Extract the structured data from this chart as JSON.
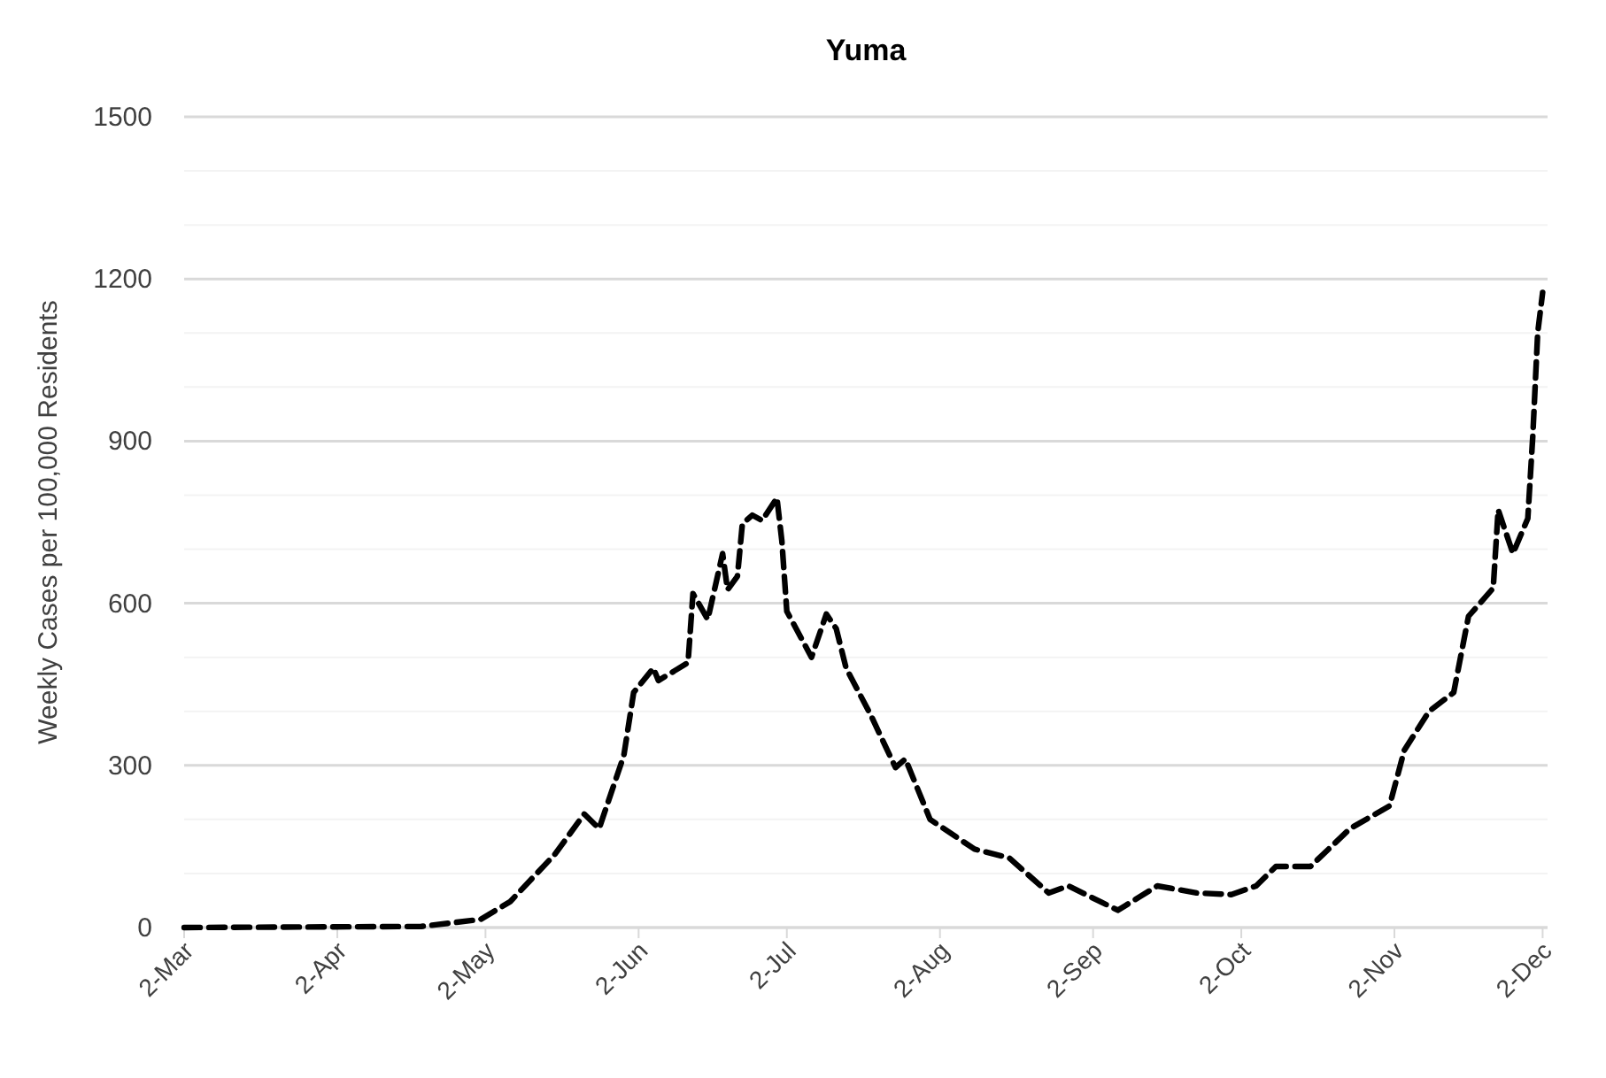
{
  "chart_data": {
    "type": "line",
    "title": "Yuma",
    "ylabel": "Weekly Cases per 100,000 Residents",
    "x": [
      "--03-02",
      "--04-19",
      "--05-01",
      "--05-07",
      "--05-16",
      "--05-22",
      "--05-25",
      "--05-30",
      "--06-01",
      "--06-05",
      "--06-06",
      "--06-12",
      "--06-13",
      "--06-16",
      "--06-19",
      "--06-20",
      "--06-22",
      "--06-23",
      "--06-25",
      "--06-27",
      "--06-30",
      "--07-01",
      "--07-02",
      "--07-07",
      "--07-10",
      "--07-12",
      "--07-14",
      "--07-19",
      "--07-24",
      "--07-26",
      "--07-31",
      "--08-09",
      "--08-16",
      "--08-24",
      "--08-28",
      "--09-07",
      "--09-15",
      "--09-23",
      "--09-30",
      "--10-05",
      "--10-09",
      "--10-16",
      "--10-24",
      "--11-01",
      "--11-04",
      "--11-09",
      "--11-14",
      "--11-17",
      "--11-22",
      "--11-23",
      "--11-26",
      "--11-29",
      "--11-30",
      "--12-01",
      "--12-02"
    ],
    "series": [
      {
        "color": "#000000",
        "line_style": "dashed",
        "values": [
          0,
          2,
          15,
          48,
          135,
          210,
          183,
          318,
          435,
          480,
          457,
          490,
          618,
          570,
          692,
          625,
          650,
          747,
          763,
          753,
          795,
          715,
          585,
          500,
          580,
          553,
          480,
          393,
          296,
          312,
          200,
          145,
          129,
          64,
          77,
          32,
          77,
          64,
          61,
          77,
          113,
          113,
          183,
          225,
          328,
          400,
          435,
          576,
          628,
          773,
          692,
          757,
          908,
          1100,
          1175
        ]
      }
    ],
    "xlim": [
      "--03-02",
      "--12-03"
    ],
    "xticks": [
      {
        "value": "--03-02",
        "label": "2-Mar"
      },
      {
        "value": "--04-02",
        "label": "2-Apr"
      },
      {
        "value": "--05-02",
        "label": "2-May"
      },
      {
        "value": "--06-02",
        "label": "2-Jun"
      },
      {
        "value": "--07-02",
        "label": "2-Jul"
      },
      {
        "value": "--08-02",
        "label": "2-Aug"
      },
      {
        "value": "--09-02",
        "label": "2-Sep"
      },
      {
        "value": "--10-02",
        "label": "2-Oct"
      },
      {
        "value": "--11-02",
        "label": "2-Nov"
      },
      {
        "value": "--12-02",
        "label": "2-Dec"
      }
    ],
    "ylim": [
      0,
      1500
    ],
    "yticks": [
      0,
      {
        "value": 100,
        "label": null
      },
      {
        "value": 200,
        "label": null
      },
      300,
      {
        "value": 400,
        "label": null
      },
      {
        "value": 500,
        "label": null
      },
      600,
      {
        "value": 700,
        "label": null
      },
      {
        "value": 800,
        "label": null
      },
      900,
      {
        "value": 1000,
        "label": null
      },
      {
        "value": 1100,
        "label": null
      },
      1200,
      {
        "value": 1300,
        "label": null
      },
      {
        "value": 1400,
        "label": null
      },
      1500
    ],
    "grid": "y",
    "marker": "none"
  }
}
